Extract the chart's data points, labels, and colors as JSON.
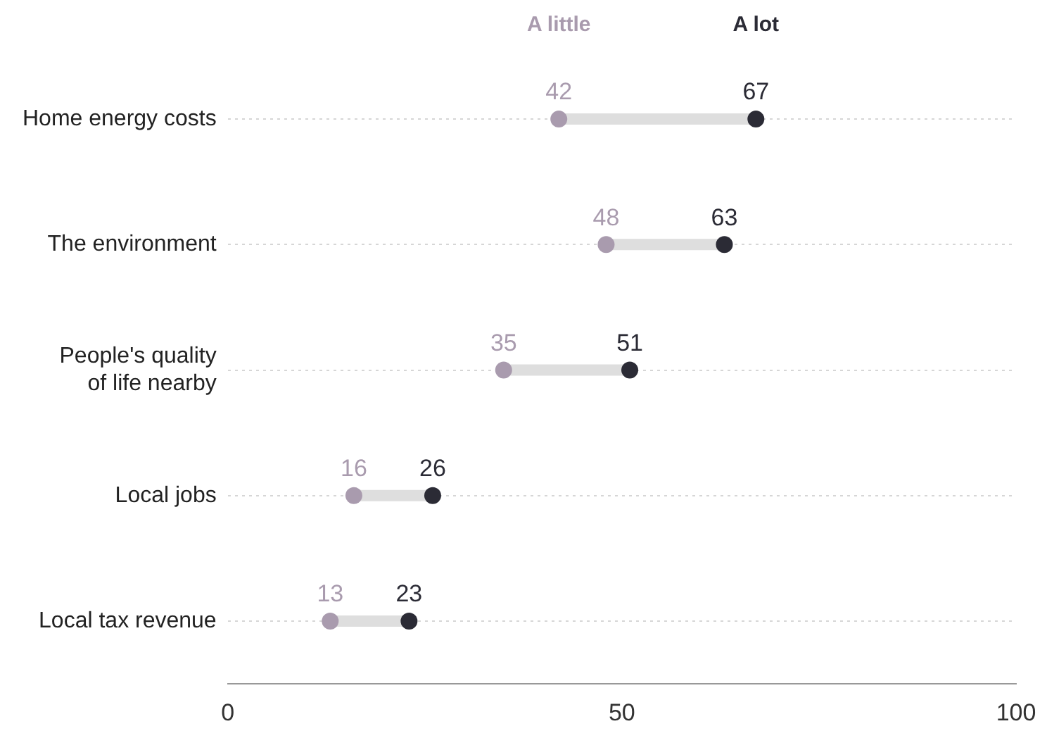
{
  "chart_data": {
    "type": "scatter",
    "orientation": "horizontal",
    "categories": [
      "Home energy costs",
      "The environment",
      "People's quality of life nearby",
      "Local jobs",
      "Local tax revenue"
    ],
    "series": [
      {
        "name": "A little",
        "color": "#a99bae",
        "values": [
          42,
          48,
          35,
          16,
          13
        ]
      },
      {
        "name": "A lot",
        "color": "#2b2b35",
        "values": [
          67,
          63,
          51,
          26,
          23
        ]
      }
    ],
    "xlim": [
      0,
      100
    ],
    "xticks": [
      0,
      50,
      100
    ],
    "data_labels": true,
    "legend": "top",
    "grid": "y",
    "marker": "circle"
  }
}
